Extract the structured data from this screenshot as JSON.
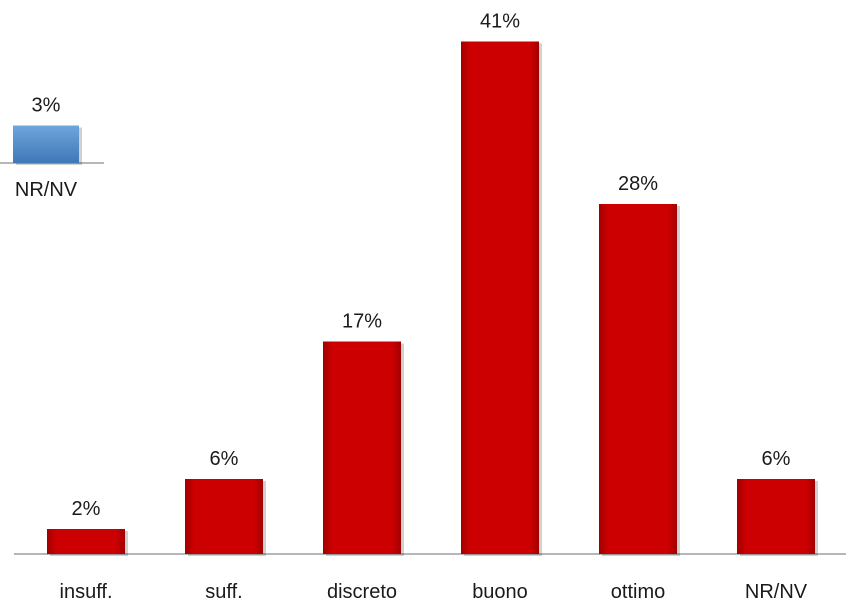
{
  "chart_data": [
    {
      "type": "bar",
      "categories": [
        "NR/NV"
      ],
      "values": [
        3
      ],
      "value_labels": [
        "3%"
      ],
      "color": "#4a86c8",
      "title": "",
      "xlabel": "",
      "ylabel": "",
      "ylim": [
        0,
        41
      ],
      "grid": false,
      "legend": "none"
    },
    {
      "type": "bar",
      "categories": [
        "insuff.",
        "suff.",
        "discreto",
        "buono",
        "ottimo",
        "NR/NV"
      ],
      "values": [
        2,
        6,
        17,
        41,
        28,
        6
      ],
      "value_labels": [
        "2%",
        "6%",
        "17%",
        "41%",
        "28%",
        "6%"
      ],
      "color": "#cc0000",
      "title": "",
      "xlabel": "",
      "ylabel": "",
      "ylim": [
        0,
        41
      ],
      "grid": false,
      "legend": "none"
    }
  ]
}
